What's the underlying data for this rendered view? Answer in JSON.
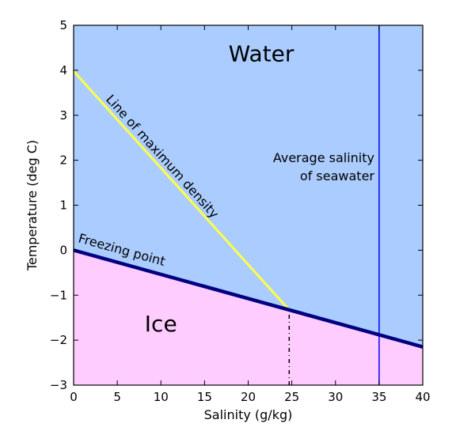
{
  "chart_data": {
    "type": "line",
    "title": "",
    "xlabel": "Salinity (g/kg)",
    "ylabel": "Temperature (deg C)",
    "xlim": [
      0,
      40
    ],
    "ylim": [
      -3,
      5
    ],
    "xticks": [
      0,
      5,
      10,
      15,
      20,
      25,
      30,
      35,
      40
    ],
    "yticks": [
      -3,
      -2,
      -1,
      0,
      1,
      2,
      3,
      4,
      5
    ],
    "grid": false,
    "series": [
      {
        "name": "Freezing point",
        "color": "#000080",
        "x": [
          0,
          40
        ],
        "y": [
          0,
          -2.15
        ]
      },
      {
        "name": "Line of maximum density",
        "color": "#ffff44",
        "x": [
          0,
          24.7
        ],
        "y": [
          3.98,
          -1.33
        ]
      },
      {
        "name": "",
        "color": "#0000ff",
        "x": [
          35,
          35
        ],
        "y": [
          -3,
          5
        ]
      },
      {
        "name": "",
        "color": "#000000",
        "style": "dotted",
        "x": [
          24.7,
          24.7
        ],
        "y": [
          -3,
          -1.33
        ]
      }
    ],
    "regions": [
      {
        "label": "Water",
        "color": "#aaccff",
        "at": [
          21.5,
          4.2
        ]
      },
      {
        "label": "Ice",
        "color": "#ffccff",
        "at": [
          10,
          -1.8
        ]
      }
    ],
    "annotations": [
      "Average salinity",
      "of seawater"
    ]
  }
}
